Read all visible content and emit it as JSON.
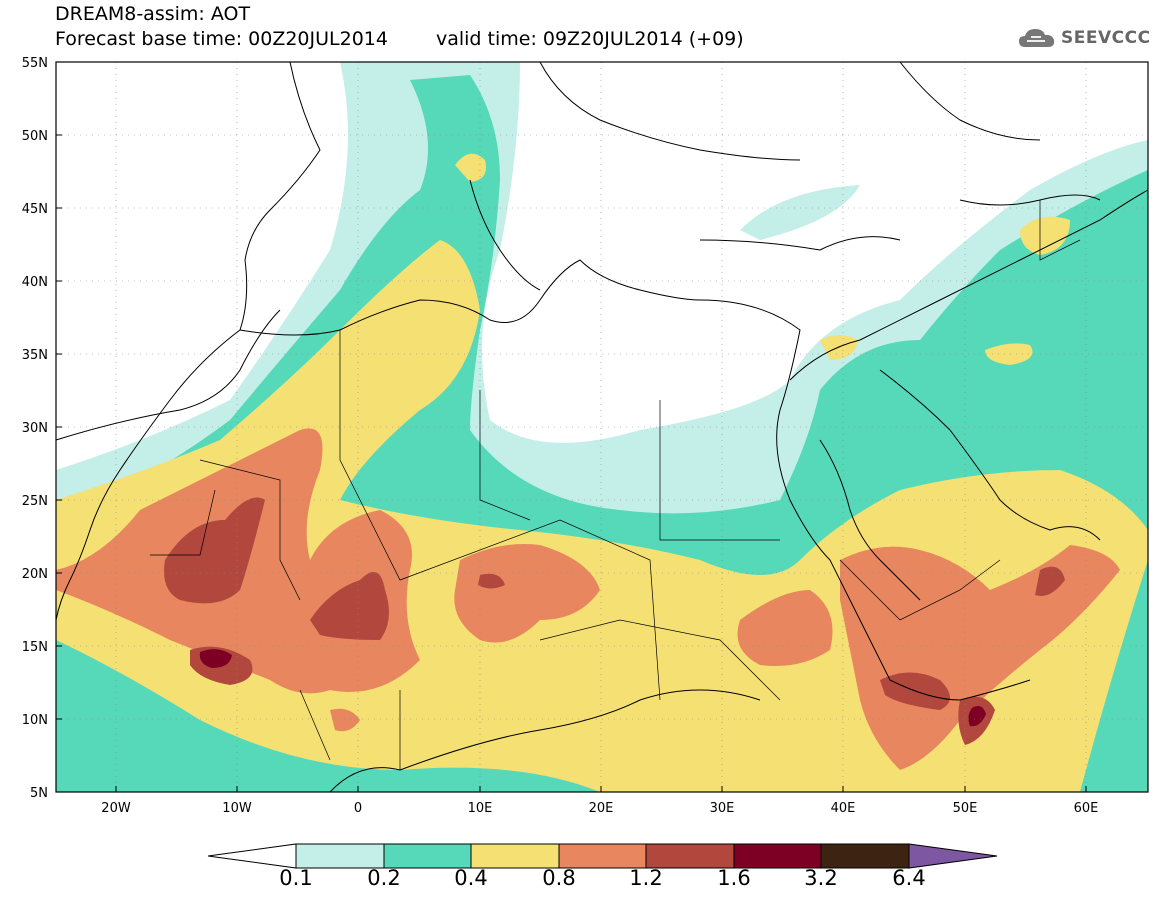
{
  "title": {
    "line1": "DREAM8-assim: AOT",
    "base_time": "Forecast base time: 00Z20JUL2014",
    "valid_time": "valid time: 09Z20JUL2014 (+09)"
  },
  "logo": {
    "text": "SEEVCCC",
    "icon": "cloud-icon"
  },
  "map": {
    "lon_ticks": [
      "20W",
      "10W",
      "0",
      "10E",
      "20E",
      "30E",
      "40E",
      "50E",
      "60E"
    ],
    "lat_ticks": [
      "5N",
      "10N",
      "15N",
      "20N",
      "25N",
      "30N",
      "35N",
      "40N",
      "45N",
      "50N",
      "55N"
    ],
    "lon_range": [
      -25,
      65
    ],
    "lat_range": [
      5,
      55
    ],
    "grid": "dotted",
    "max_marker": "51E 11N"
  },
  "colorbar": {
    "labels": [
      "0.1",
      "0.2",
      "0.4",
      "0.8",
      "1.2",
      "1.6",
      "3.2",
      "6.4"
    ],
    "colors": [
      "#ffffff",
      "#c4eee8",
      "#56d9b8",
      "#f5e073",
      "#e8875f",
      "#b2473d",
      "#7d0024",
      "#3c2312",
      "#7e57a3"
    ]
  }
}
